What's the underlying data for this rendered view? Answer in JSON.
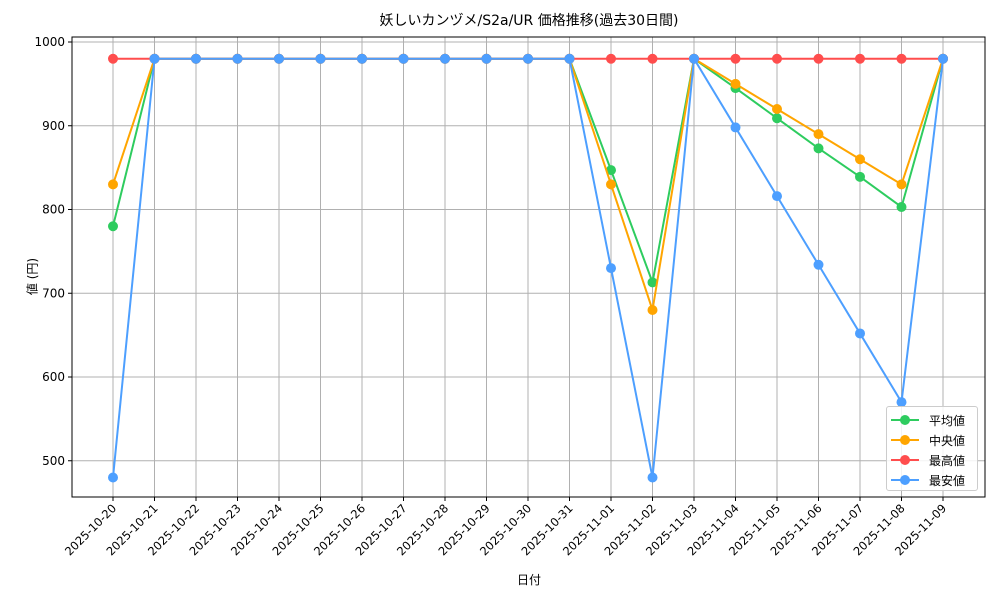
{
  "chart_data": {
    "type": "line",
    "title": "妖しいカンヅメ/S2a/UR 価格推移(過去30日間)",
    "xlabel": "日付",
    "ylabel": "値 (円)",
    "ylim": [
      455,
      1005
    ],
    "yticks": [
      500,
      600,
      700,
      800,
      900,
      1000
    ],
    "grid": true,
    "legend_position": "lower right",
    "categories": [
      "2025-10-20",
      "2025-10-21",
      "2025-10-22",
      "2025-10-23",
      "2025-10-24",
      "2025-10-25",
      "2025-10-26",
      "2025-10-27",
      "2025-10-28",
      "2025-10-29",
      "2025-10-30",
      "2025-10-31",
      "2025-11-01",
      "2025-11-02",
      "2025-11-03",
      "2025-11-04",
      "2025-11-05",
      "2025-11-06",
      "2025-11-07",
      "2025-11-08",
      "2025-11-09"
    ],
    "series": [
      {
        "name": "平均値",
        "color": "#2ecc5f",
        "values": [
          780,
          980,
          980,
          980,
          980,
          980,
          980,
          980,
          980,
          980,
          980,
          980,
          847,
          713,
          980,
          945,
          909,
          873,
          839,
          803,
          980
        ]
      },
      {
        "name": "中央値",
        "color": "#ffa500",
        "values": [
          830,
          980,
          980,
          980,
          980,
          980,
          980,
          980,
          980,
          980,
          980,
          980,
          830,
          680,
          980,
          950,
          920,
          890,
          860,
          830,
          980
        ]
      },
      {
        "name": "最高値",
        "color": "#ff4d4d",
        "values": [
          980,
          980,
          980,
          980,
          980,
          980,
          980,
          980,
          980,
          980,
          980,
          980,
          980,
          980,
          980,
          980,
          980,
          980,
          980,
          980,
          980
        ]
      },
      {
        "name": "最安値",
        "color": "#4d9fff",
        "values": [
          480,
          980,
          980,
          980,
          980,
          980,
          980,
          980,
          980,
          980,
          980,
          980,
          730,
          480,
          980,
          898,
          816,
          734,
          652,
          570,
          980
        ]
      }
    ]
  }
}
